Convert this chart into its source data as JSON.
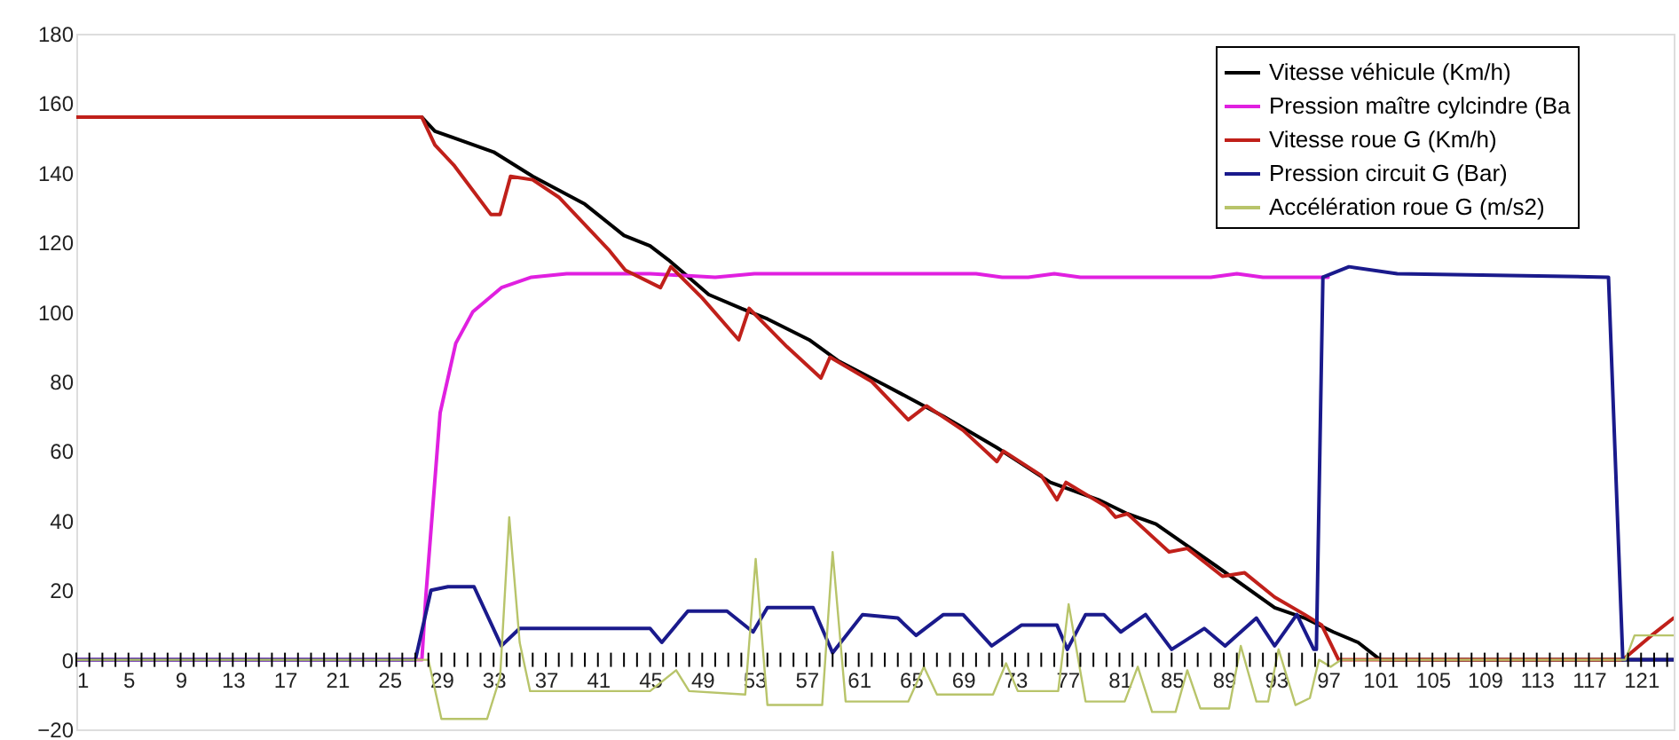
{
  "chart_data": {
    "type": "line",
    "xlim": [
      1,
      123.5
    ],
    "ylim": [
      -20,
      180
    ],
    "xticks": [
      1,
      {
        "value": 2,
        "label": null
      },
      {
        "value": 3,
        "label": null
      },
      {
        "value": 4,
        "label": null
      },
      5,
      {
        "value": 6,
        "label": null
      },
      {
        "value": 7,
        "label": null
      },
      {
        "value": 8,
        "label": null
      },
      9,
      {
        "value": 10,
        "label": null
      },
      {
        "value": 11,
        "label": null
      },
      {
        "value": 12,
        "label": null
      },
      13,
      {
        "value": 14,
        "label": null
      },
      {
        "value": 15,
        "label": null
      },
      {
        "value": 16,
        "label": null
      },
      17,
      {
        "value": 18,
        "label": null
      },
      {
        "value": 19,
        "label": null
      },
      {
        "value": 20,
        "label": null
      },
      21,
      {
        "value": 22,
        "label": null
      },
      {
        "value": 23,
        "label": null
      },
      {
        "value": 24,
        "label": null
      },
      25,
      {
        "value": 26,
        "label": null
      },
      {
        "value": 27,
        "label": null
      },
      {
        "value": 28,
        "label": null
      },
      29,
      {
        "value": 30,
        "label": null
      },
      {
        "value": 31,
        "label": null
      },
      {
        "value": 32,
        "label": null
      },
      33,
      {
        "value": 34,
        "label": null
      },
      {
        "value": 35,
        "label": null
      },
      {
        "value": 36,
        "label": null
      },
      37,
      {
        "value": 38,
        "label": null
      },
      {
        "value": 39,
        "label": null
      },
      {
        "value": 40,
        "label": null
      },
      41,
      {
        "value": 42,
        "label": null
      },
      {
        "value": 43,
        "label": null
      },
      {
        "value": 44,
        "label": null
      },
      45,
      {
        "value": 46,
        "label": null
      },
      {
        "value": 47,
        "label": null
      },
      {
        "value": 48,
        "label": null
      },
      49,
      {
        "value": 50,
        "label": null
      },
      {
        "value": 51,
        "label": null
      },
      {
        "value": 52,
        "label": null
      },
      53,
      {
        "value": 54,
        "label": null
      },
      {
        "value": 55,
        "label": null
      },
      {
        "value": 56,
        "label": null
      },
      57,
      {
        "value": 58,
        "label": null
      },
      {
        "value": 59,
        "label": null
      },
      {
        "value": 60,
        "label": null
      },
      61,
      {
        "value": 62,
        "label": null
      },
      {
        "value": 63,
        "label": null
      },
      {
        "value": 64,
        "label": null
      },
      65,
      {
        "value": 66,
        "label": null
      },
      {
        "value": 67,
        "label": null
      },
      {
        "value": 68,
        "label": null
      },
      69,
      {
        "value": 70,
        "label": null
      },
      {
        "value": 71,
        "label": null
      },
      {
        "value": 72,
        "label": null
      },
      73,
      {
        "value": 74,
        "label": null
      },
      {
        "value": 75,
        "label": null
      },
      {
        "value": 76,
        "label": null
      },
      77,
      {
        "value": 78,
        "label": null
      },
      {
        "value": 79,
        "label": null
      },
      {
        "value": 80,
        "label": null
      },
      81,
      {
        "value": 82,
        "label": null
      },
      {
        "value": 83,
        "label": null
      },
      {
        "value": 84,
        "label": null
      },
      85,
      {
        "value": 86,
        "label": null
      },
      {
        "value": 87,
        "label": null
      },
      {
        "value": 88,
        "label": null
      },
      89,
      {
        "value": 90,
        "label": null
      },
      {
        "value": 91,
        "label": null
      },
      {
        "value": 92,
        "label": null
      },
      93,
      {
        "value": 94,
        "label": null
      },
      {
        "value": 95,
        "label": null
      },
      {
        "value": 96,
        "label": null
      },
      97,
      {
        "value": 98,
        "label": null
      },
      {
        "value": 99,
        "label": null
      },
      {
        "value": 100,
        "label": null
      },
      101,
      {
        "value": 102,
        "label": null
      },
      {
        "value": 103,
        "label": null
      },
      {
        "value": 104,
        "label": null
      },
      105,
      {
        "value": 106,
        "label": null
      },
      {
        "value": 107,
        "label": null
      },
      {
        "value": 108,
        "label": null
      },
      109,
      {
        "value": 110,
        "label": null
      },
      {
        "value": 111,
        "label": null
      },
      {
        "value": 112,
        "label": null
      },
      113,
      {
        "value": 114,
        "label": null
      },
      {
        "value": 115,
        "label": null
      },
      {
        "value": 116,
        "label": null
      },
      117,
      {
        "value": 118,
        "label": null
      },
      {
        "value": 119,
        "label": null
      },
      {
        "value": 120,
        "label": null
      },
      121,
      {
        "value": 122,
        "label": null
      },
      {
        "value": 123,
        "label": null
      }
    ],
    "yticks": [
      -20,
      0,
      20,
      40,
      60,
      80,
      100,
      120,
      140,
      160,
      180
    ],
    "grid": false,
    "legend": "top right",
    "marker": "none",
    "line_style": "solid",
    "series": [
      {
        "name": "Vitesse véhicule (Km/h)",
        "color": "#000000",
        "x": [
          1,
          27.5,
          28.5,
          30,
          33,
          36,
          40,
          43,
          45,
          46.4,
          49.5,
          52,
          54,
          57.2,
          59.4,
          63,
          67.5,
          71.6,
          75.7,
          79.4,
          81.6,
          83.8,
          88.4,
          92.9,
          95.2,
          97.4,
          99.3,
          101,
          123.5
        ],
        "values": [
          156,
          156,
          152,
          150,
          146,
          139,
          131,
          122,
          119,
          115,
          105,
          101,
          98,
          92,
          86,
          79,
          70,
          61,
          51,
          46,
          42,
          39,
          27,
          15,
          12,
          8,
          5,
          0,
          0
        ]
      },
      {
        "name": "Pression maître cylcindre (Ba",
        "color": "#e020e0",
        "x": [
          1,
          27.5,
          27.8,
          28.9,
          30.1,
          31.4,
          33.6,
          35.9,
          38.6,
          45,
          50,
          53,
          60,
          70,
          72,
          74,
          76,
          78,
          80,
          88,
          90,
          92,
          94,
          97
        ],
        "values": [
          0,
          0,
          18,
          71,
          91,
          100,
          107,
          110,
          111,
          111,
          110,
          111,
          111,
          111,
          110,
          110,
          111,
          110,
          110,
          110,
          111,
          110,
          110,
          110
        ]
      },
      {
        "name": "Vitesse roue G (Km/h)",
        "color": "#c0201a",
        "x": [
          1,
          27.5,
          28.5,
          30,
          32.8,
          33.5,
          34.3,
          36,
          38,
          41.8,
          43.1,
          45.8,
          46.6,
          49,
          51.8,
          52.6,
          55.5,
          58.1,
          58.8,
          62,
          64.8,
          66.2,
          69,
          71.6,
          72.1,
          75,
          76.2,
          76.9,
          80,
          80.7,
          81.6,
          84.8,
          86.2,
          88.9,
          90.6,
          92.9,
          95.2,
          96.5,
          97.8,
          119.6,
          121.8,
          123.5
        ],
        "values": [
          156,
          156,
          148,
          142,
          128,
          128,
          139,
          138,
          133,
          118,
          112,
          107,
          113,
          104,
          92,
          101,
          90,
          81,
          87,
          80,
          69,
          73,
          66,
          57,
          60,
          53,
          46,
          51,
          44,
          41,
          42,
          31,
          32,
          24,
          25,
          18,
          13,
          10,
          0,
          0,
          7,
          12
        ]
      },
      {
        "name": "Pression circuit G (Bar)",
        "color": "#1a1a8c",
        "x": [
          1,
          27,
          28.2,
          29.5,
          31.5,
          33.6,
          35,
          45,
          45.9,
          47.9,
          50.9,
          52.9,
          54,
          57.5,
          59,
          61.3,
          64,
          65.4,
          67.5,
          69,
          71.2,
          73.5,
          76.2,
          77,
          78.4,
          79.8,
          81.1,
          83,
          85,
          87.5,
          89.1,
          91.5,
          92.9,
          94.6,
          95.9,
          96.1,
          96.6,
          98.6,
          102.3,
          118.5,
          119.6,
          123.5
        ],
        "values": [
          0,
          0,
          20,
          21,
          21,
          4,
          9,
          9,
          5,
          14,
          14,
          8,
          15,
          15,
          2,
          13,
          12,
          7,
          13,
          13,
          4,
          10,
          10,
          3,
          13,
          13,
          8,
          13,
          3,
          9,
          4,
          12,
          4,
          13,
          3,
          3,
          110,
          113,
          111,
          110,
          0,
          0
        ]
      },
      {
        "name": "Accélération roue G (m/s2)",
        "color": "#b8c46a",
        "x": [
          1,
          28,
          29,
          32.5,
          33.5,
          34.2,
          35,
          35.8,
          45,
          47,
          48,
          52.3,
          53.1,
          54,
          58.2,
          59,
          60,
          64.8,
          66,
          67,
          71.3,
          72.3,
          73.2,
          76.3,
          77.1,
          78.4,
          81.4,
          82.4,
          83.5,
          85.3,
          86.2,
          87.2,
          89.4,
          90.3,
          91.5,
          92.4,
          93.2,
          94.5,
          95.6,
          96.3,
          97.2,
          98,
          119.8,
          120.5,
          123.5
        ],
        "values": [
          0,
          0,
          -17,
          -17,
          -5,
          41,
          5,
          -9,
          -9,
          -3,
          -9,
          -10,
          29,
          -13,
          -13,
          31,
          -12,
          -12,
          -2,
          -10,
          -10,
          -1,
          -9,
          -9,
          16,
          -12,
          -12,
          -2,
          -15,
          -15,
          -3,
          -14,
          -14,
          4,
          -12,
          -12,
          3,
          -13,
          -11,
          0,
          -2,
          0,
          0,
          7,
          7
        ]
      }
    ]
  }
}
